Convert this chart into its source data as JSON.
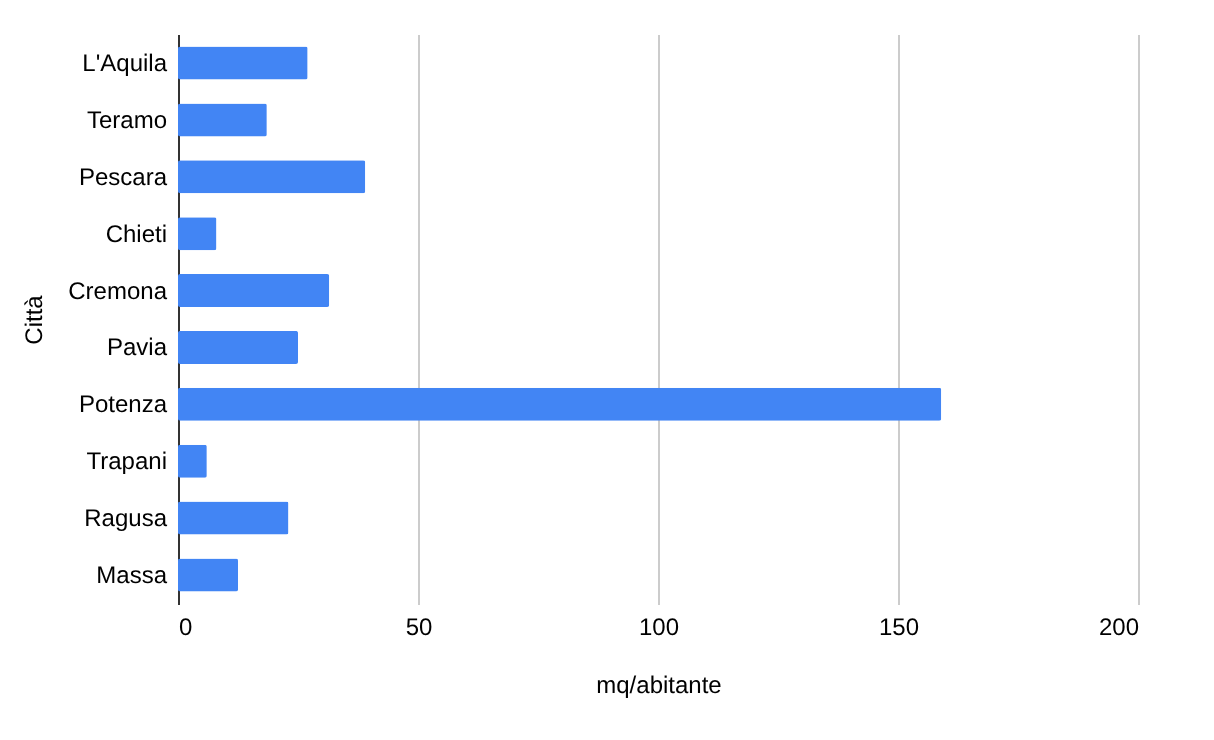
{
  "chart_data": {
    "type": "bar",
    "orientation": "horizontal",
    "xlabel": "mq/abitante",
    "ylabel": "Città",
    "categories": [
      "L'Aquila",
      "Teramo",
      "Pescara",
      "Chieti",
      "Cremona",
      "Pavia",
      "Potenza",
      "Trapani",
      "Ragusa",
      "Massa"
    ],
    "values": [
      27,
      18.5,
      39,
      8,
      31.5,
      25,
      159,
      6,
      23,
      12.5
    ],
    "color": "#4285f4",
    "xlim": [
      0,
      200
    ],
    "xticks": [
      0,
      50,
      100,
      150,
      200
    ],
    "grid": "x"
  }
}
